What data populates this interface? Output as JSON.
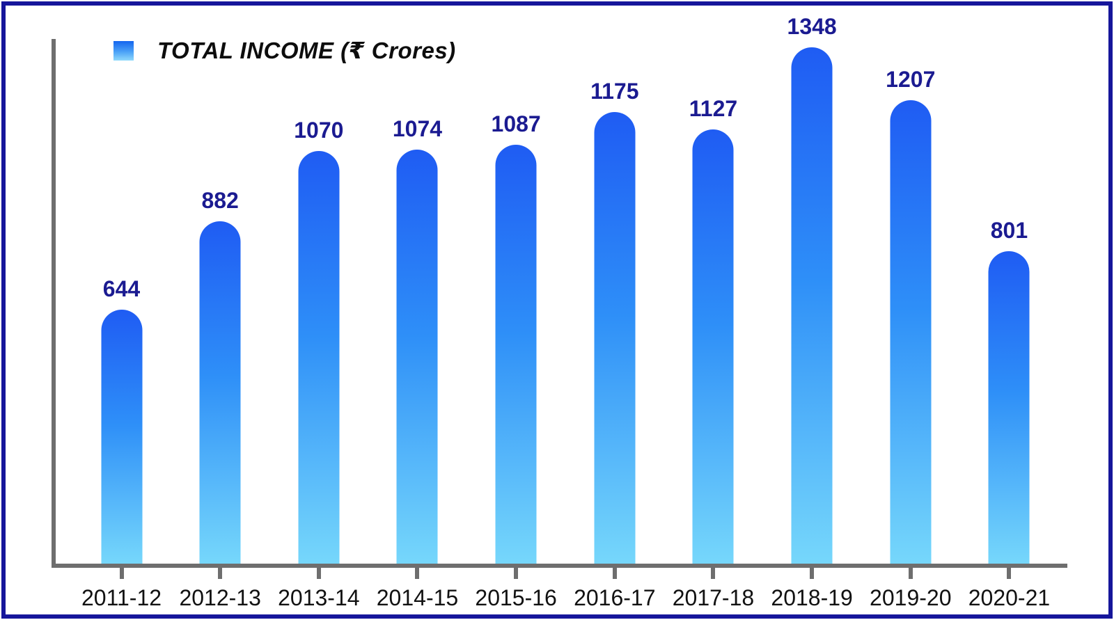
{
  "chart_data": {
    "type": "bar",
    "title": "TOTAL INCOME (₹ Crores)",
    "legend": {
      "label": "TOTAL INCOME (₹ Crores)",
      "position": "top-left",
      "swatch": "blue-gradient-square"
    },
    "categories": [
      "2011-12",
      "2012-13",
      "2013-14",
      "2014-15",
      "2015-16",
      "2016-17",
      "2017-18",
      "2018-19",
      "2019-20",
      "2020-21"
    ],
    "values": [
      644,
      882,
      1070,
      1074,
      1087,
      1175,
      1127,
      1348,
      1207,
      801
    ],
    "xlabel": "",
    "ylabel": "",
    "ylim": [
      0,
      1400
    ],
    "grid": false,
    "data_labels": true,
    "bar_shape": "rounded-top",
    "colors": {
      "bar_gradient_top": "#1f5cf3",
      "bar_gradient_bottom": "#76d7fb",
      "value_label": "#1b1b91",
      "category_label": "#111111",
      "axis": "#6e6e6e",
      "frame_border": "#16169b",
      "legend_text": "#0d0d0d"
    }
  }
}
